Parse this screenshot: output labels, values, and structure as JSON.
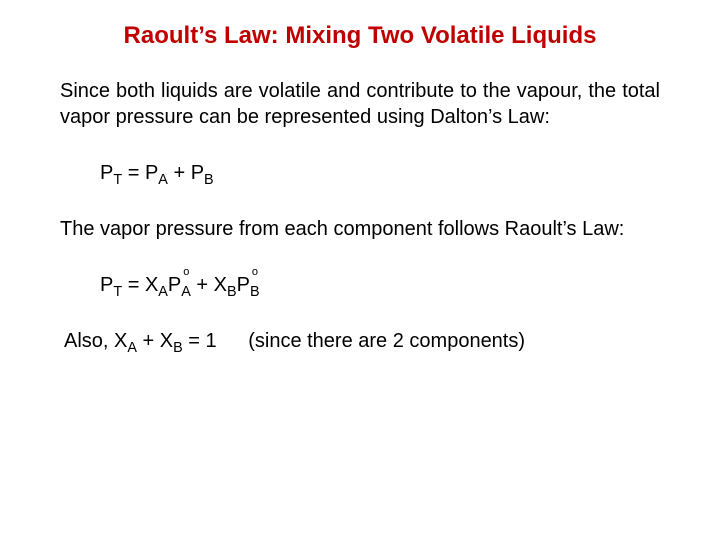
{
  "slide": {
    "title": "Raoult’s Law: Mixing Two Volatile Liquids",
    "title_color": "#c00000",
    "title_fontsize": 24,
    "body_fontsize": 20,
    "text_color": "#000000",
    "background_color": "#ffffff",
    "para1": "Since both liquids are volatile and contribute to the vapour, the total vapor pressure can be represented using Dalton’s Law:",
    "eq1": {
      "lhs": "P",
      "lhs_sub": "T",
      "eq": " = ",
      "t1": "P",
      "t1_sub": "A",
      "plus": " + ",
      "t2": "P",
      "t2_sub": "B"
    },
    "para2": "The vapor pressure from each component follows Raoult’s Law:",
    "eq2": {
      "lhs": "P",
      "lhs_sub": "T",
      "eq": " = ",
      "x1": "X",
      "x1_sub": "A",
      "p1": "P",
      "p1_sub": "A",
      "p1_deg": "o",
      "plus": " + ",
      "x2": "X",
      "x2_sub": "B",
      "p2": "P",
      "p2_sub": "B",
      "p2_deg": "o"
    },
    "note": {
      "also": "Also, ",
      "xa": "X",
      "xa_sub": "A",
      "plus": " + ",
      "xb": "X",
      "xb_sub": "B",
      "eq1": " = 1",
      "explain": "(since there are 2 components)"
    }
  }
}
